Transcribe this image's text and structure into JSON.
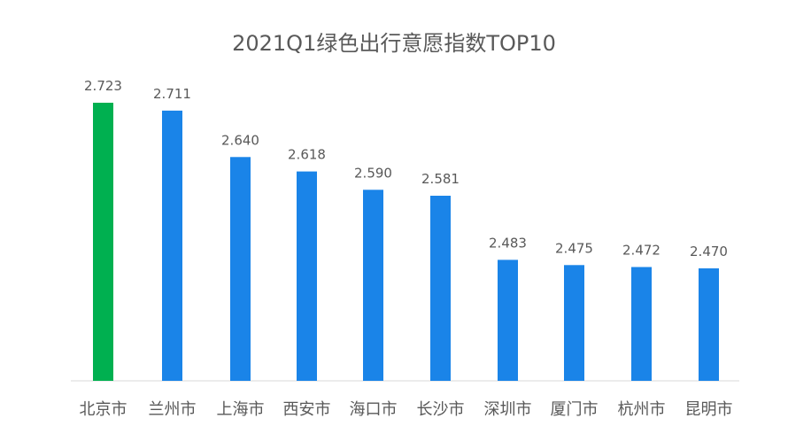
{
  "chart_data": {
    "type": "bar",
    "title": "2021Q1绿色出行意愿指数TOP10",
    "categories": [
      "北京市",
      "兰州市",
      "上海市",
      "西安市",
      "海口市",
      "长沙市",
      "深圳市",
      "厦门市",
      "杭州市",
      "昆明市"
    ],
    "values": [
      2.723,
      2.711,
      2.64,
      2.618,
      2.59,
      2.581,
      2.483,
      2.475,
      2.472,
      2.47
    ],
    "value_labels": [
      "2.723",
      "2.711",
      "2.640",
      "2.618",
      "2.590",
      "2.581",
      "2.483",
      "2.475",
      "2.472",
      "2.470"
    ],
    "xlabel": "",
    "ylabel": "",
    "ylim": [
      2.2,
      2.75
    ],
    "grid": false,
    "legend": "none",
    "colors": {
      "highlight": "#00b050",
      "bar": "#1a84e8",
      "axis": "#d9d9d9",
      "text": "#595959"
    },
    "highlight_index": 0
  }
}
